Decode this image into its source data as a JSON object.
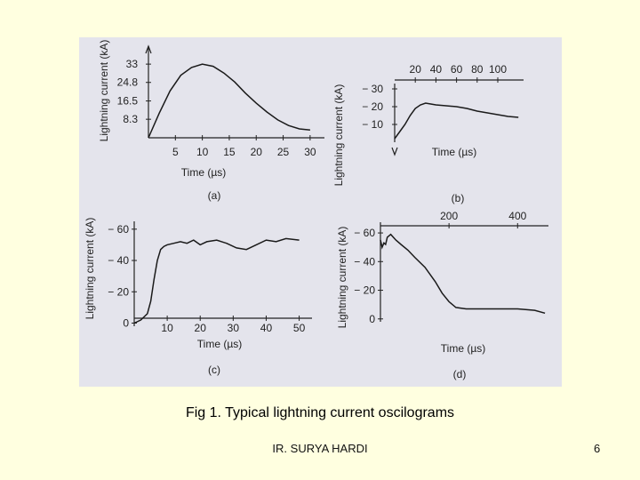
{
  "slide": {
    "caption": "Fig 1. Typical lightning current oscilograms",
    "author": "IR. SURYA HARDI",
    "page": "6"
  },
  "colors": {
    "background": "#ffffe0",
    "figure": "#e4e4ec",
    "ink": "#222222"
  },
  "chart_data": [
    {
      "id": "a",
      "type": "line",
      "panel_label": "(a)",
      "xlabel": "Time (µs)",
      "ylabel": "Lightning current (kA)",
      "xlim": [
        0,
        32
      ],
      "ylim": [
        0,
        45
      ],
      "x_ticks": [
        "5",
        "10",
        "15",
        "20",
        "25",
        "30"
      ],
      "y_ticks": [
        "33",
        "24.8",
        "16.5",
        "8.3"
      ],
      "x": [
        0,
        2,
        4,
        6,
        8,
        10,
        12,
        14,
        16,
        18,
        20,
        22,
        24,
        26,
        28,
        30
      ],
      "y": [
        0,
        11,
        21,
        28,
        31.5,
        33,
        32,
        29,
        25,
        20,
        15.5,
        11.5,
        8,
        5.5,
        4,
        3.5
      ]
    },
    {
      "id": "b",
      "type": "line",
      "panel_label": "(b)",
      "xlabel": "Time (µs)",
      "ylabel": "Lightning current (kA)",
      "xlim": [
        0,
        125
      ],
      "ylim": [
        -35,
        0
      ],
      "x_ticks": [
        "20",
        "40",
        "60",
        "80",
        "100"
      ],
      "y_ticks": [
        "− 10",
        "− 20",
        "− 30"
      ],
      "x": [
        0,
        5,
        10,
        15,
        20,
        25,
        30,
        35,
        40,
        50,
        60,
        70,
        80,
        90,
        100,
        110,
        120
      ],
      "y": [
        -2,
        -6,
        -10,
        -15,
        -19,
        -21,
        -22,
        -21.5,
        -21,
        -20.5,
        -20,
        -19,
        -17.5,
        -16.5,
        -15.5,
        -14.5,
        -14
      ]
    },
    {
      "id": "c",
      "type": "line",
      "panel_label": "(c)",
      "xlabel": "Time (µs)",
      "ylabel": "Lightning current (kA)",
      "xlim": [
        0,
        52
      ],
      "ylim": [
        -65,
        2
      ],
      "x_ticks": [
        "10",
        "20",
        "30",
        "40",
        "50"
      ],
      "y_ticks": [
        "0",
        "− 20",
        "− 40",
        "− 60"
      ],
      "x": [
        0,
        2,
        4,
        5,
        6,
        7,
        8,
        9,
        10,
        12,
        14,
        16,
        18,
        20,
        22,
        25,
        28,
        31,
        34,
        37,
        40,
        43,
        46,
        50
      ],
      "y": [
        0,
        -2,
        -6,
        -14,
        -28,
        -40,
        -47,
        -49,
        -50,
        -51,
        -52,
        -51,
        -53,
        -50,
        -52,
        -53,
        -51,
        -48,
        -47,
        -50,
        -53,
        -52,
        -54,
        -53
      ]
    },
    {
      "id": "d",
      "type": "line",
      "panel_label": "(d)",
      "xlabel": "Time (µs)",
      "ylabel": "Lightning current (kA)",
      "xlim": [
        0,
        490
      ],
      "ylim": [
        -65,
        2
      ],
      "x_ticks": [
        "200",
        "400"
      ],
      "y_ticks": [
        "0",
        "− 20",
        "− 40",
        "− 60"
      ],
      "x": [
        0,
        5,
        10,
        15,
        20,
        30,
        45,
        60,
        80,
        100,
        130,
        160,
        180,
        200,
        220,
        250,
        300,
        350,
        400,
        450,
        480
      ],
      "y": [
        -55,
        -50,
        -53,
        -52,
        -57,
        -59,
        -55,
        -52,
        -48,
        -43,
        -36,
        -26,
        -18,
        -12,
        -8,
        -7,
        -7,
        -7,
        -7,
        -6,
        -4
      ]
    }
  ]
}
